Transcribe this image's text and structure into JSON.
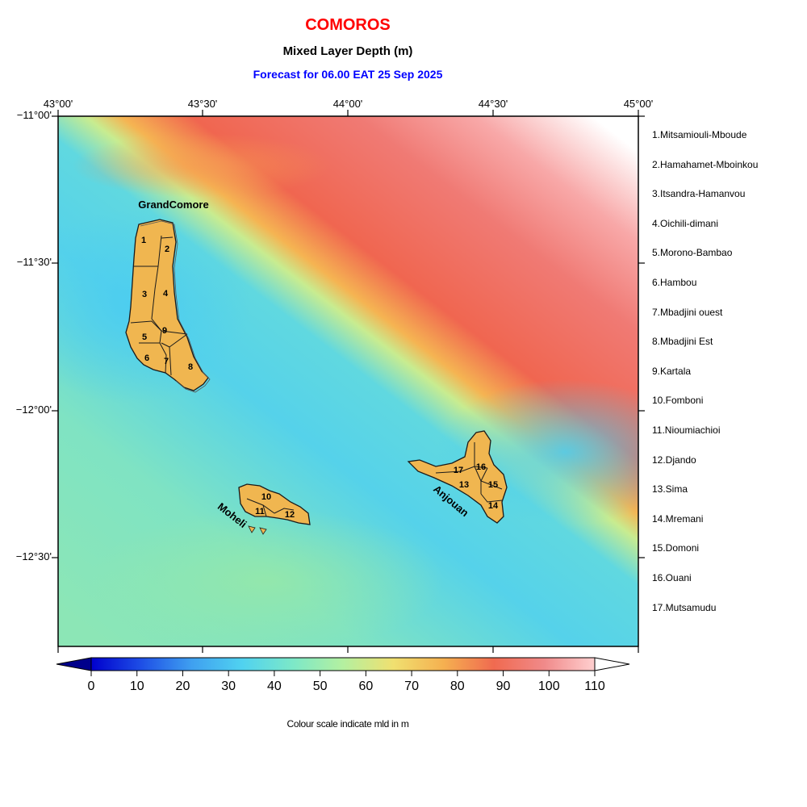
{
  "header": {
    "country": "COMOROS",
    "variable": "Mixed Layer Depth (m)",
    "forecast": "Forecast for  06.00 EAT 25 Sep 2025"
  },
  "axes": {
    "lon_ticks": [
      "43°00'",
      "43°30'",
      "44°00'",
      "44°30'",
      "45°00'"
    ],
    "lat_ticks": [
      "−11°00'",
      "−11°30'",
      "−12°00'",
      "−12°30'"
    ]
  },
  "islands": {
    "grande_comore": "GrandComore",
    "moheli": "Moheli",
    "anjouan": "Anjouan"
  },
  "regions": [
    "1.Mitsamiouli-Mboude",
    "2.Hamahamet-Mboinkou",
    "3.Itsandra-Hamanvou",
    "4.Oichili-dimani",
    "5.Morono-Bambao",
    "6.Hambou",
    "7.Mbadjini ouest",
    "8.Mbadjini Est",
    "9.Kartala",
    "10.Fomboni",
    "11.Nioumiachioi",
    "12.Djando",
    "13.Sima",
    "14.Mremani",
    "15.Domoni",
    "16.Ouani",
    "17.Mutsamudu"
  ],
  "region_numbers": [
    "1",
    "2",
    "3",
    "4",
    "5",
    "6",
    "7",
    "8",
    "9",
    "10",
    "11",
    "12",
    "13",
    "14",
    "15",
    "16",
    "17"
  ],
  "colorbar": {
    "ticks": [
      "0",
      "10",
      "20",
      "30",
      "40",
      "50",
      "60",
      "70",
      "80",
      "90",
      "100",
      "110"
    ],
    "min": 0,
    "max": 110,
    "caption": "Colour scale indicate mld in m",
    "colors": [
      "#00008b",
      "#0000cd",
      "#1e4fe6",
      "#3fa0f0",
      "#50d2f0",
      "#7ce8c8",
      "#b4f0a0",
      "#f0e070",
      "#f5b050",
      "#f06a50",
      "#f08a8a",
      "#ffd0d0",
      "#ffffff"
    ]
  },
  "land_color": "#f0b650"
}
